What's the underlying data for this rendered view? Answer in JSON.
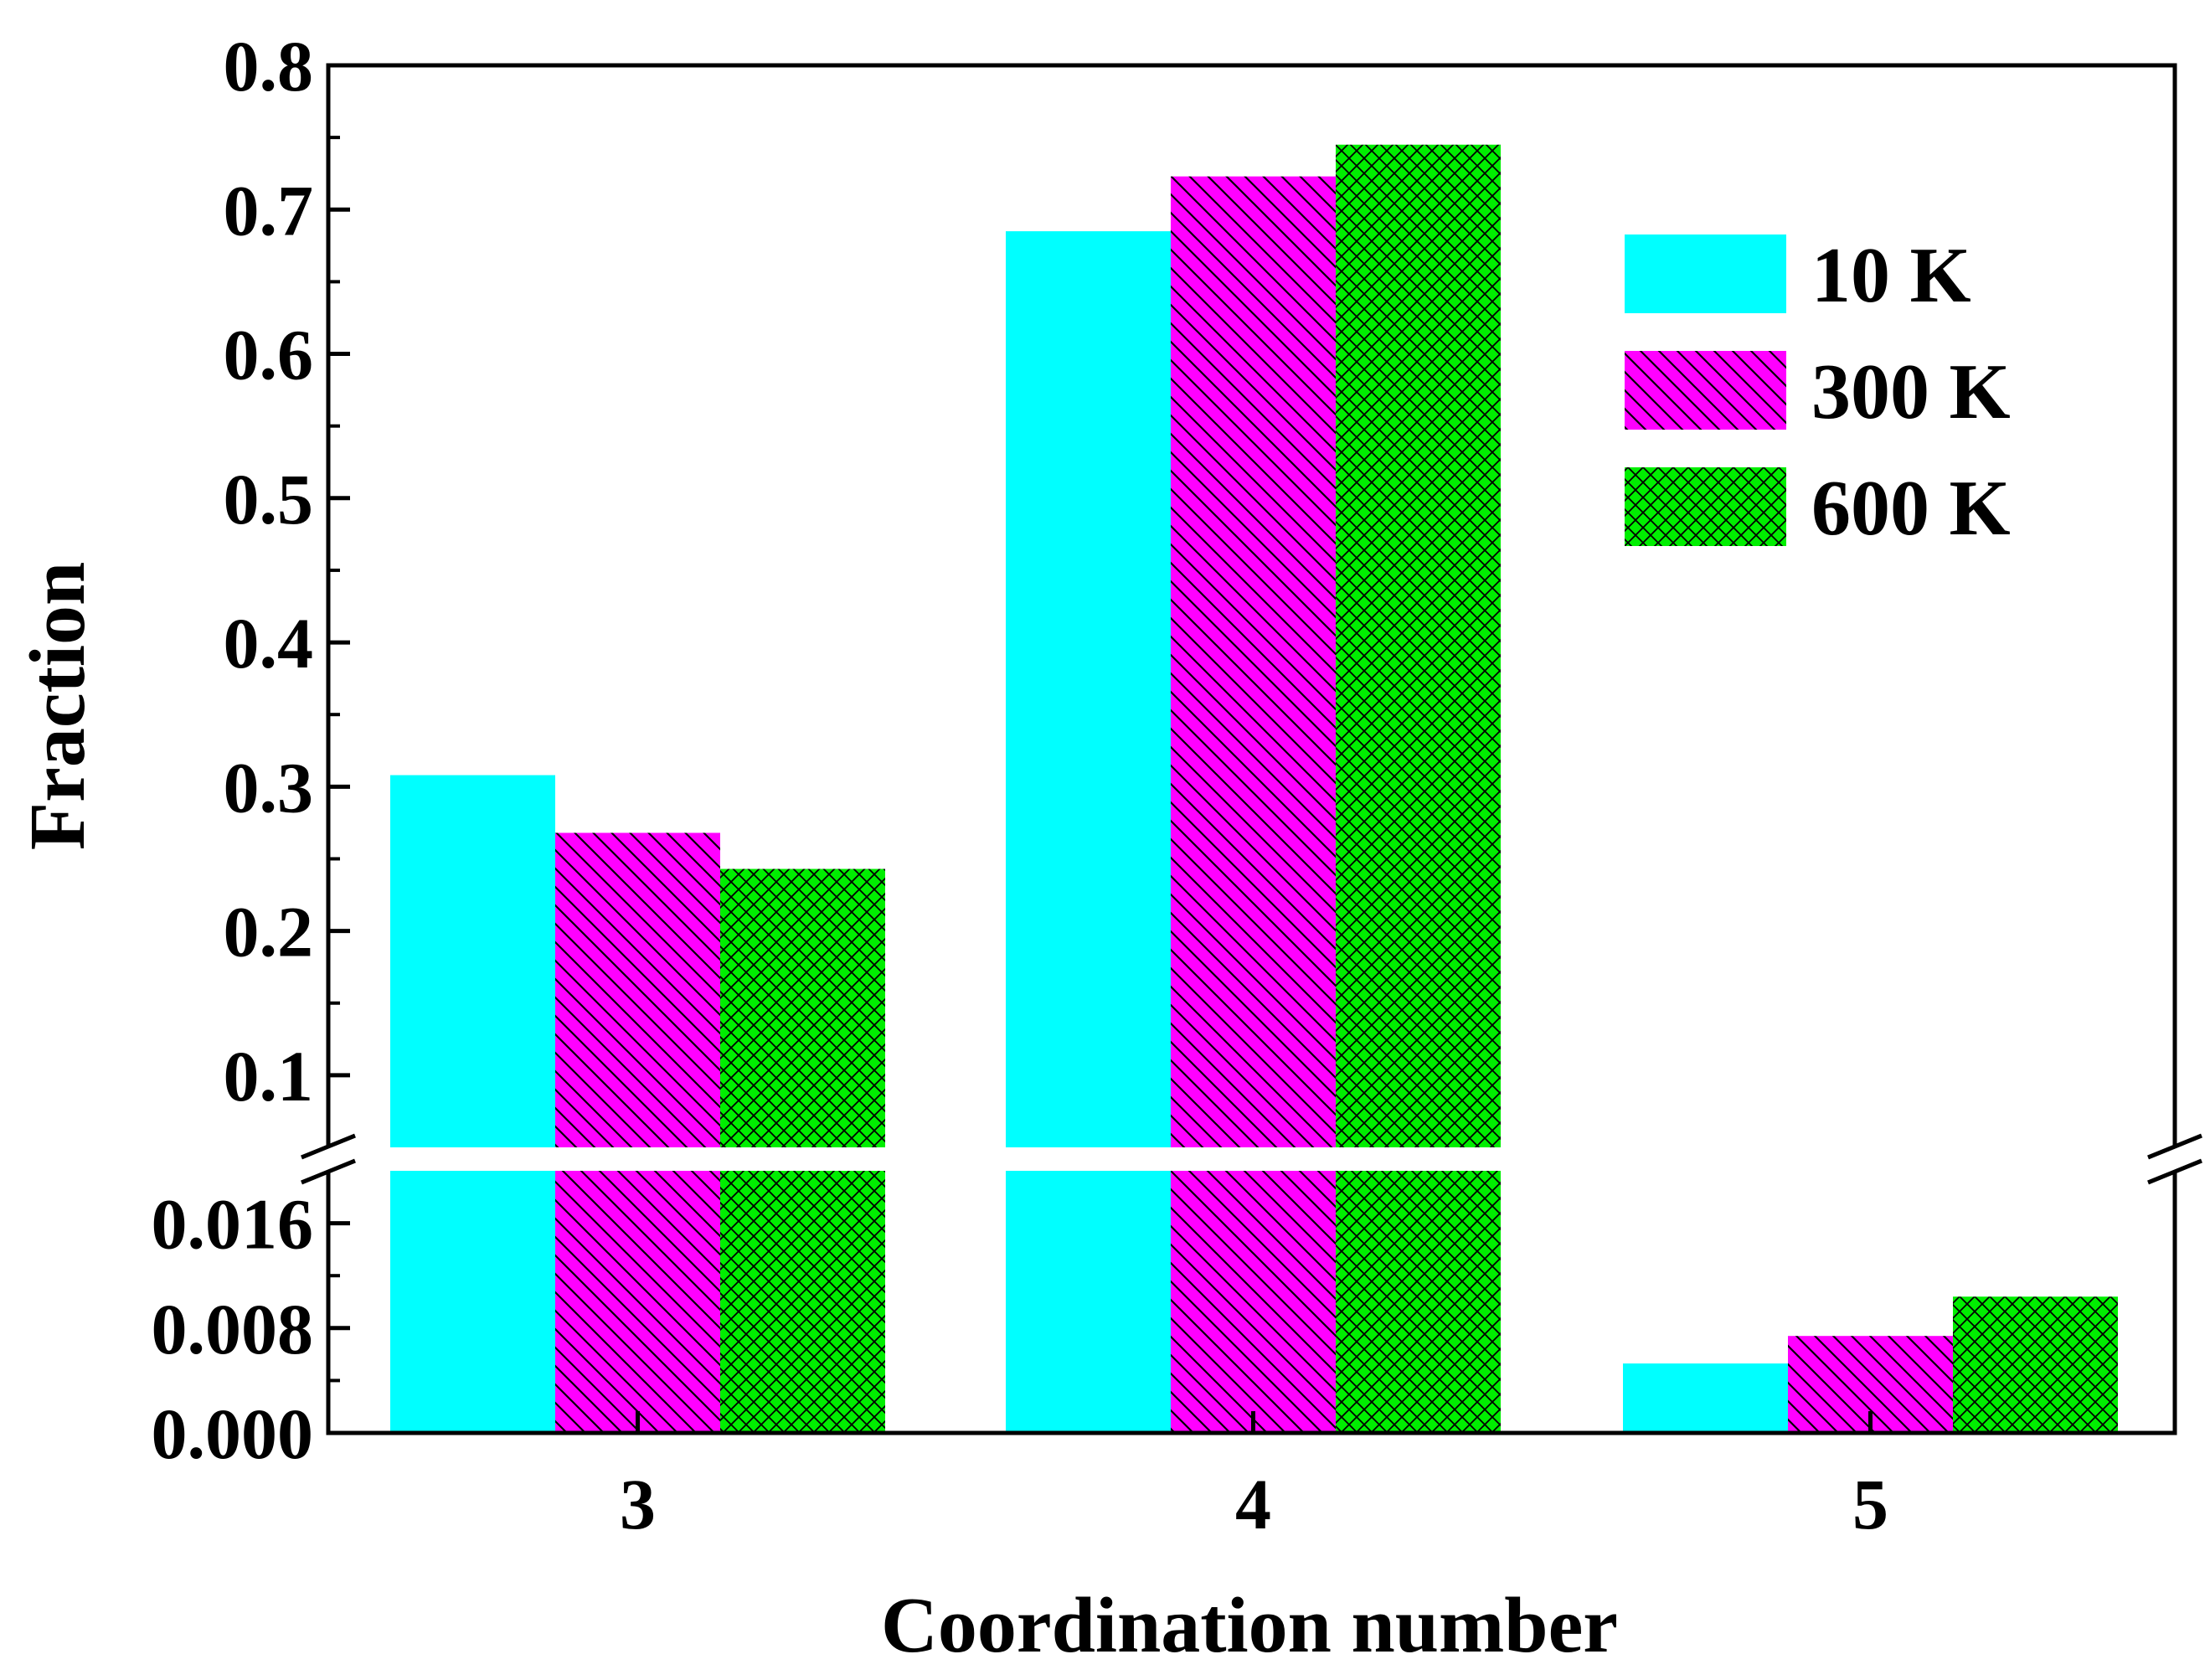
{
  "chart_data": {
    "type": "bar",
    "title": "",
    "xlabel": "Coordination number",
    "ylabel": "Fraction",
    "categories": [
      "3",
      "4",
      "5"
    ],
    "series": [
      {
        "name": "10 K",
        "color": "#00ffff",
        "pattern": "none",
        "values": [
          0.308,
          0.685,
          0.0053
        ]
      },
      {
        "name": "300 K",
        "color": "#ff00ff",
        "pattern": "diagonal",
        "values": [
          0.268,
          0.723,
          0.0074
        ]
      },
      {
        "name": "600 K",
        "color": "#00ee00",
        "pattern": "crosshatch",
        "values": [
          0.243,
          0.745,
          0.0104
        ]
      }
    ],
    "y_break": {
      "lower_range": [
        0,
        0.02
      ],
      "upper_range": [
        0.05,
        0.8
      ],
      "lower_ticks": [
        "0.000",
        "0.008",
        "0.016"
      ],
      "upper_ticks": [
        "0.1",
        "0.2",
        "0.3",
        "0.4",
        "0.5",
        "0.6",
        "0.7",
        "0.8"
      ]
    },
    "legend_position": "top-right",
    "grid": false
  }
}
